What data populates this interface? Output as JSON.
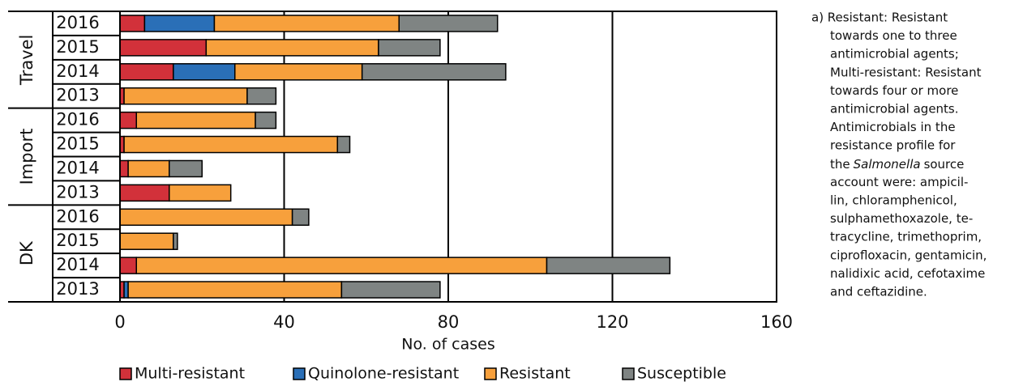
{
  "chart_data": {
    "type": "stacked-bar-horizontal",
    "xlabel": "No. of cases",
    "xlim": [
      0,
      160
    ],
    "xticks": [
      0,
      40,
      80,
      120,
      160
    ],
    "grid": true,
    "groups": [
      {
        "label": "Travel",
        "categories": [
          "2016",
          "2015",
          "2014",
          "2013"
        ]
      },
      {
        "label": "Import",
        "categories": [
          "2016",
          "2015",
          "2014",
          "2013"
        ]
      },
      {
        "label": "DK",
        "categories": [
          "2016",
          "2015",
          "2014",
          "2013"
        ]
      }
    ],
    "series": [
      {
        "name": "Multi-resistant",
        "color": "#d2313a",
        "values": [
          6,
          21,
          13,
          1,
          4,
          1,
          2,
          12,
          0,
          0,
          4,
          1
        ]
      },
      {
        "name": "Quinolone-resistant",
        "color": "#2a6fb7",
        "values": [
          17,
          0,
          15,
          0,
          0,
          0,
          0,
          0,
          0,
          0,
          0,
          1
        ]
      },
      {
        "name": "Resistant",
        "color": "#f7a03c",
        "values": [
          45,
          42,
          31,
          30,
          29,
          52,
          10,
          15,
          42,
          13,
          100,
          52
        ]
      },
      {
        "name": "Susceptible",
        "color": "#7f8483",
        "values": [
          24,
          15,
          35,
          7,
          5,
          3,
          8,
          0,
          4,
          1,
          30,
          24
        ]
      }
    ],
    "legend": "bottom",
    "note": [
      "a) Resistant: Resistant",
      "towards one to three",
      "antimicrobial agents;",
      "Multi-resistant: Resistant",
      "towards four or more",
      "antimicrobial agents.",
      "Antimicrobials in the",
      "resistance profile for",
      [
        "the",
        "Salmonella",
        "source"
      ],
      "account were: ampicil-",
      "lin, chloramphenicol,",
      "sulphamethoxazole, te-",
      "tracycline, trimethoprim,",
      "ciprofloxacin, gentamicin,",
      "nalidixic acid, cefotaxime",
      "and ceftazidine."
    ]
  }
}
